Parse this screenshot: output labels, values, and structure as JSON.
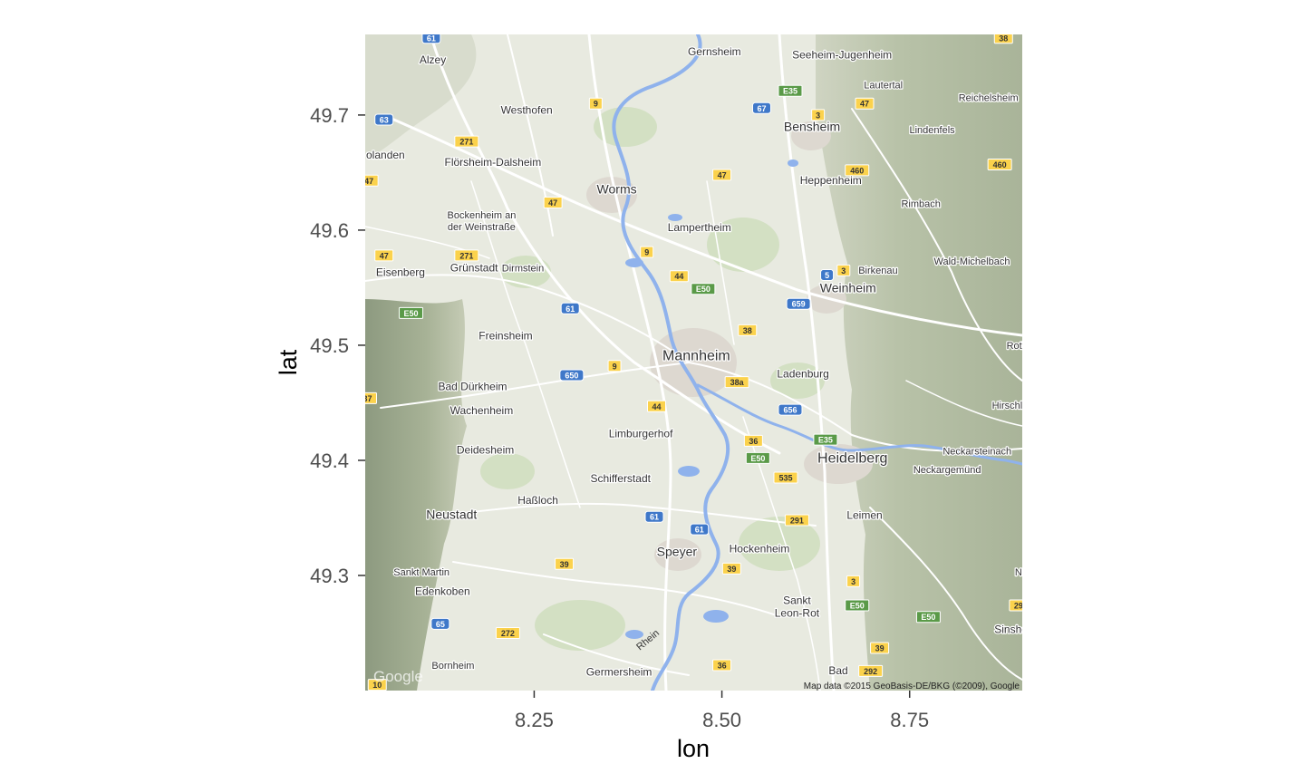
{
  "plot": {
    "xlabel": "lon",
    "ylabel": "lat",
    "xticks": [
      8.25,
      8.5,
      8.75
    ],
    "xtick_labels": [
      "8.25",
      "8.50",
      "8.75"
    ],
    "yticks": [
      49.3,
      49.4,
      49.5,
      49.6,
      49.7
    ],
    "ytick_labels": [
      "49.3",
      "49.4",
      "49.5",
      "49.6",
      "49.7"
    ],
    "xlim": [
      8.025,
      8.9
    ],
    "ylim": [
      49.2,
      49.77
    ]
  },
  "map": {
    "attribution": "Map data ©2015 GeoBasis-DE/BKG (©2009), Google",
    "logo": "Google",
    "river_label": "Rhein",
    "colors": {
      "land": "#e8eae0",
      "hills": "#b9c3a8",
      "water": "#8fb2ec",
      "road": "#ffffff",
      "autobahn": "#fbd24c",
      "forest": "#cfe0bd"
    },
    "places": [
      {
        "name": "Alzey",
        "lon": 8.115,
        "lat": 49.745,
        "size": "s"
      },
      {
        "name": "Gernsheim",
        "lon": 8.49,
        "lat": 49.752,
        "size": "s"
      },
      {
        "name": "Seeheim-Jugenheim",
        "lon": 8.66,
        "lat": 49.749,
        "size": "s"
      },
      {
        "name": "Lautertal",
        "lon": 8.715,
        "lat": 49.723,
        "size": "xs"
      },
      {
        "name": "Reichelsheim",
        "lon": 8.855,
        "lat": 49.712,
        "size": "xs"
      },
      {
        "name": "Westhofen",
        "lon": 8.24,
        "lat": 49.701,
        "size": "s"
      },
      {
        "name": "Bensheim",
        "lon": 8.62,
        "lat": 49.686,
        "size": "m"
      },
      {
        "name": "Lindenfels",
        "lon": 8.78,
        "lat": 49.684,
        "size": "xs"
      },
      {
        "name": "olanden",
        "lon": 8.052,
        "lat": 49.662,
        "size": "s"
      },
      {
        "name": "Flörsheim-Dalsheim",
        "lon": 8.195,
        "lat": 49.656,
        "size": "s"
      },
      {
        "name": "Heppenheim",
        "lon": 8.645,
        "lat": 49.64,
        "size": "s"
      },
      {
        "name": "Worms",
        "lon": 8.36,
        "lat": 49.632,
        "size": "m"
      },
      {
        "name": "Rimbach",
        "lon": 8.765,
        "lat": 49.62,
        "size": "xs"
      },
      {
        "name": "Bockenheim an",
        "lon": 8.18,
        "lat": 49.61,
        "size": "xs"
      },
      {
        "name": "der Weinstraße",
        "lon": 8.18,
        "lat": 49.6,
        "size": "xs"
      },
      {
        "name": "Lampertheim",
        "lon": 8.47,
        "lat": 49.599,
        "size": "s"
      },
      {
        "name": "Grünstadt",
        "lon": 8.17,
        "lat": 49.564,
        "size": "s"
      },
      {
        "name": "Dirmstein",
        "lon": 8.235,
        "lat": 49.564,
        "size": "xs"
      },
      {
        "name": "Wald-Michelbach",
        "lon": 8.833,
        "lat": 49.57,
        "size": "xs"
      },
      {
        "name": "Birkenau",
        "lon": 8.708,
        "lat": 49.562,
        "size": "xs"
      },
      {
        "name": "Eisenberg",
        "lon": 8.072,
        "lat": 49.56,
        "size": "s"
      },
      {
        "name": "Weinheim",
        "lon": 8.668,
        "lat": 49.546,
        "size": "m"
      },
      {
        "name": "Freinsheim",
        "lon": 8.212,
        "lat": 49.505,
        "size": "s"
      },
      {
        "name": "Mannheim",
        "lon": 8.466,
        "lat": 49.487,
        "size": "l"
      },
      {
        "name": "Ladenburg",
        "lon": 8.608,
        "lat": 49.472,
        "size": "s"
      },
      {
        "name": "Bad Dürkheim",
        "lon": 8.168,
        "lat": 49.461,
        "size": "s"
      },
      {
        "name": "Wachenheim",
        "lon": 8.18,
        "lat": 49.44,
        "size": "s"
      },
      {
        "name": "Hirschl",
        "lon": 8.88,
        "lat": 49.445,
        "size": "xs"
      },
      {
        "name": "Limburgerhof",
        "lon": 8.392,
        "lat": 49.42,
        "size": "s"
      },
      {
        "name": "Deidesheim",
        "lon": 8.185,
        "lat": 49.406,
        "size": "s"
      },
      {
        "name": "Neckarsteinach",
        "lon": 8.84,
        "lat": 49.405,
        "size": "xs"
      },
      {
        "name": "Heidelberg",
        "lon": 8.674,
        "lat": 49.398,
        "size": "l"
      },
      {
        "name": "Neckargemünd",
        "lon": 8.8,
        "lat": 49.389,
        "size": "xs"
      },
      {
        "name": "Schifferstadt",
        "lon": 8.365,
        "lat": 49.381,
        "size": "s"
      },
      {
        "name": "Haßloch",
        "lon": 8.255,
        "lat": 49.362,
        "size": "s"
      },
      {
        "name": "Neustadt",
        "lon": 8.14,
        "lat": 49.349,
        "size": "m"
      },
      {
        "name": "Leimen",
        "lon": 8.69,
        "lat": 49.349,
        "size": "s"
      },
      {
        "name": "Hockenheim",
        "lon": 8.55,
        "lat": 49.32,
        "size": "s"
      },
      {
        "name": "Speyer",
        "lon": 8.44,
        "lat": 49.317,
        "size": "m"
      },
      {
        "name": "Sankt Martin",
        "lon": 8.1,
        "lat": 49.3,
        "size": "xs"
      },
      {
        "name": "Edenkoben",
        "lon": 8.128,
        "lat": 49.283,
        "size": "s"
      },
      {
        "name": "Sankt",
        "lon": 8.6,
        "lat": 49.275,
        "size": "s"
      },
      {
        "name": "Leon-Rot",
        "lon": 8.6,
        "lat": 49.264,
        "size": "s"
      },
      {
        "name": "Sinshe",
        "lon": 8.885,
        "lat": 49.25,
        "size": "s"
      },
      {
        "name": "Bornheim",
        "lon": 8.142,
        "lat": 49.219,
        "size": "xs"
      },
      {
        "name": "Germersheim",
        "lon": 8.363,
        "lat": 49.213,
        "size": "s"
      },
      {
        "name": "Bad",
        "lon": 8.655,
        "lat": 49.214,
        "size": "s"
      },
      {
        "name": "Roth",
        "lon": 8.893,
        "lat": 49.497,
        "size": "xs"
      },
      {
        "name": "N",
        "lon": 8.895,
        "lat": 49.3,
        "size": "xs"
      }
    ],
    "shields": [
      {
        "label": "61",
        "type": "autobahn",
        "lon": 8.113,
        "lat": 49.767
      },
      {
        "label": "38",
        "type": "bundes",
        "lon": 8.875,
        "lat": 49.767
      },
      {
        "label": "63",
        "type": "autobahn",
        "lon": 8.05,
        "lat": 49.696
      },
      {
        "label": "9",
        "type": "bundes",
        "lon": 8.332,
        "lat": 49.71
      },
      {
        "label": "67",
        "type": "autobahn",
        "lon": 8.553,
        "lat": 49.706
      },
      {
        "label": "E35",
        "type": "euro",
        "lon": 8.591,
        "lat": 49.721
      },
      {
        "label": "3",
        "type": "bundes",
        "lon": 8.628,
        "lat": 49.7
      },
      {
        "label": "47",
        "type": "bundes",
        "lon": 8.69,
        "lat": 49.71
      },
      {
        "label": "271",
        "type": "bundes",
        "lon": 8.16,
        "lat": 49.677
      },
      {
        "label": "460",
        "type": "bundes",
        "lon": 8.87,
        "lat": 49.657
      },
      {
        "label": "460",
        "type": "bundes",
        "lon": 8.68,
        "lat": 49.652
      },
      {
        "label": "47",
        "type": "bundes",
        "lon": 8.03,
        "lat": 49.643
      },
      {
        "label": "47",
        "type": "bundes",
        "lon": 8.5,
        "lat": 49.648
      },
      {
        "label": "47",
        "type": "bundes",
        "lon": 8.275,
        "lat": 49.624
      },
      {
        "label": "9",
        "type": "bundes",
        "lon": 8.4,
        "lat": 49.581
      },
      {
        "label": "47",
        "type": "bundes",
        "lon": 8.05,
        "lat": 49.578
      },
      {
        "label": "271",
        "type": "bundes",
        "lon": 8.16,
        "lat": 49.578
      },
      {
        "label": "44",
        "type": "bundes",
        "lon": 8.443,
        "lat": 49.56
      },
      {
        "label": "5",
        "type": "autobahn",
        "lon": 8.64,
        "lat": 49.561
      },
      {
        "label": "3",
        "type": "bundes",
        "lon": 8.662,
        "lat": 49.565
      },
      {
        "label": "E50",
        "type": "euro",
        "lon": 8.475,
        "lat": 49.549
      },
      {
        "label": "659",
        "type": "autobahn",
        "lon": 8.602,
        "lat": 49.536
      },
      {
        "label": "61",
        "type": "autobahn",
        "lon": 8.298,
        "lat": 49.532
      },
      {
        "label": "E50",
        "type": "euro",
        "lon": 8.086,
        "lat": 49.528
      },
      {
        "label": "38",
        "type": "bundes",
        "lon": 8.534,
        "lat": 49.513
      },
      {
        "label": "9",
        "type": "bundes",
        "lon": 8.357,
        "lat": 49.482
      },
      {
        "label": "650",
        "type": "autobahn",
        "lon": 8.3,
        "lat": 49.474
      },
      {
        "label": "38a",
        "type": "bundes",
        "lon": 8.52,
        "lat": 49.468
      },
      {
        "label": "37",
        "type": "bundes",
        "lon": 8.028,
        "lat": 49.454
      },
      {
        "label": "44",
        "type": "bundes",
        "lon": 8.413,
        "lat": 49.447
      },
      {
        "label": "656",
        "type": "autobahn",
        "lon": 8.591,
        "lat": 49.444
      },
      {
        "label": "36",
        "type": "bundes",
        "lon": 8.542,
        "lat": 49.417
      },
      {
        "label": "E35",
        "type": "euro",
        "lon": 8.638,
        "lat": 49.418
      },
      {
        "label": "E50",
        "type": "euro",
        "lon": 8.548,
        "lat": 49.402
      },
      {
        "label": "535",
        "type": "bundes",
        "lon": 8.585,
        "lat": 49.385
      },
      {
        "label": "61",
        "type": "autobahn",
        "lon": 8.41,
        "lat": 49.351
      },
      {
        "label": "61",
        "type": "autobahn",
        "lon": 8.47,
        "lat": 49.34
      },
      {
        "label": "291",
        "type": "bundes",
        "lon": 8.6,
        "lat": 49.348
      },
      {
        "label": "39",
        "type": "bundes",
        "lon": 8.29,
        "lat": 49.31
      },
      {
        "label": "39",
        "type": "bundes",
        "lon": 8.513,
        "lat": 49.306
      },
      {
        "label": "3",
        "type": "bundes",
        "lon": 8.675,
        "lat": 49.295
      },
      {
        "label": "E50",
        "type": "euro",
        "lon": 8.68,
        "lat": 49.274
      },
      {
        "label": "E50",
        "type": "euro",
        "lon": 8.775,
        "lat": 49.264
      },
      {
        "label": "29",
        "type": "bundes",
        "lon": 8.895,
        "lat": 49.274
      },
      {
        "label": "65",
        "type": "autobahn",
        "lon": 8.125,
        "lat": 49.258
      },
      {
        "label": "272",
        "type": "bundes",
        "lon": 8.215,
        "lat": 49.25
      },
      {
        "label": "39",
        "type": "bundes",
        "lon": 8.71,
        "lat": 49.237
      },
      {
        "label": "36",
        "type": "bundes",
        "lon": 8.5,
        "lat": 49.222
      },
      {
        "label": "292",
        "type": "bundes",
        "lon": 8.698,
        "lat": 49.217
      },
      {
        "label": "10",
        "type": "bundes",
        "lon": 8.041,
        "lat": 49.205
      }
    ]
  }
}
